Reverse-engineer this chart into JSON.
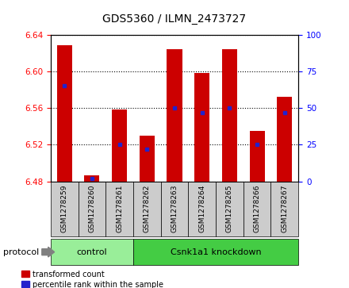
{
  "title": "GDS5360 / ILMN_2473727",
  "samples": [
    "GSM1278259",
    "GSM1278260",
    "GSM1278261",
    "GSM1278262",
    "GSM1278263",
    "GSM1278264",
    "GSM1278265",
    "GSM1278266",
    "GSM1278267"
  ],
  "transformed_count": [
    6.628,
    6.487,
    6.558,
    6.53,
    6.624,
    6.598,
    6.624,
    6.535,
    6.572
  ],
  "percentile_rank": [
    65,
    2,
    25,
    22,
    50,
    47,
    50,
    25,
    47
  ],
  "bar_bottom": 6.48,
  "ylim_left": [
    6.48,
    6.64
  ],
  "ylim_right": [
    0,
    100
  ],
  "yticks_left": [
    6.48,
    6.52,
    6.56,
    6.6,
    6.64
  ],
  "yticks_right": [
    0,
    25,
    50,
    75,
    100
  ],
  "n_control": 3,
  "n_knockdown": 6,
  "control_label": "control",
  "knockdown_label": "Csnk1a1 knockdown",
  "protocol_label": "protocol",
  "bar_color": "#cc0000",
  "dot_color": "#2222cc",
  "control_bg": "#99ee99",
  "knockdown_bg": "#44cc44",
  "sample_bg": "#cccccc",
  "bar_width": 0.55,
  "legend_red_label": "transformed count",
  "legend_blue_label": "percentile rank within the sample"
}
